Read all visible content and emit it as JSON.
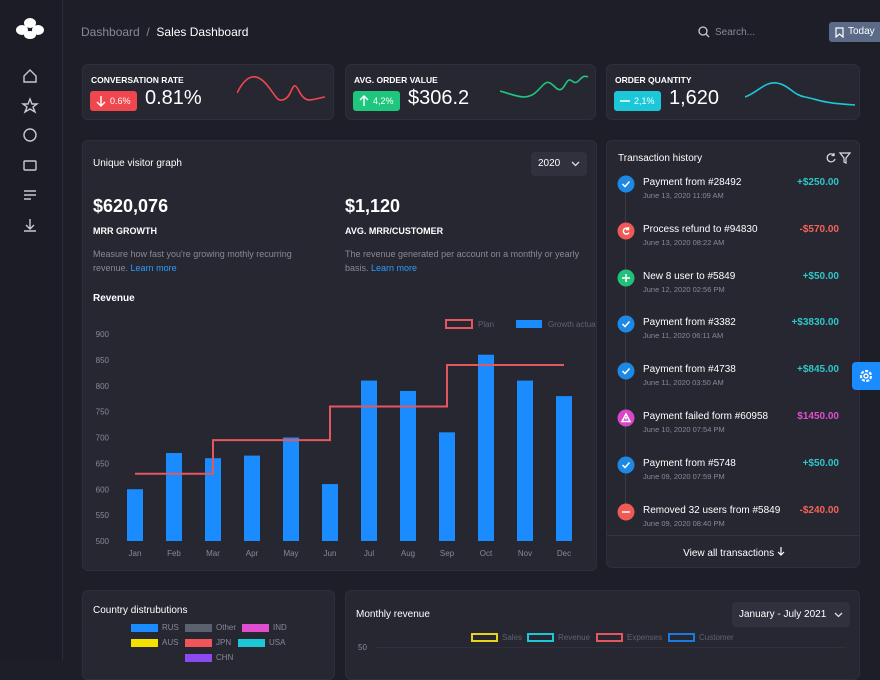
{
  "header": {
    "breadcrumb": [
      "Dashboard",
      "Sales Dashboard"
    ],
    "search": "Search...",
    "button": "Today"
  },
  "kpis": [
    {
      "title": "CONVERSATION RATE",
      "change": "0.6%",
      "value": "0.81%",
      "icon": "down",
      "color": "#f0474f"
    },
    {
      "title": "AVG. ORDER VALUE",
      "change": "4,2%",
      "value": "$306.2",
      "icon": "up",
      "color": "#1fc77e"
    },
    {
      "title": "ORDER QUANTITY",
      "change": "2,1%",
      "value": "1,620",
      "icon": "flat",
      "color": "#1cc8d8"
    }
  ],
  "visitor": {
    "title": "Unique visitor graph",
    "select": "2020",
    "metrics": [
      {
        "value": "$620,076",
        "label": "MRR GROWTH",
        "description": "Measure how fast you're growing mothly recurring revenue.",
        "link": "Learn more"
      },
      {
        "value": "$1,120",
        "label": "AVG. MRR/CUSTOMER",
        "description": "The revenue generated per account on a monthly or yearly basis.",
        "link": "Learn more"
      }
    ]
  },
  "chart_data": {
    "type": "bar",
    "title": "Revenue",
    "categories": [
      "Jan",
      "Feb",
      "Mar",
      "Apr",
      "May",
      "Jun",
      "Jul",
      "Aug",
      "Sep",
      "Oct",
      "Nov",
      "Dec"
    ],
    "series": [
      {
        "name": "Plan",
        "type": "step",
        "color": "#e5575f",
        "values": [
          630,
          630,
          695,
          695,
          695,
          760,
          760,
          760,
          840,
          840,
          840,
          840
        ]
      },
      {
        "name": "Growth actual",
        "type": "bar",
        "color": "#1a8cff",
        "values": [
          600,
          670,
          660,
          665,
          700,
          610,
          810,
          790,
          710,
          860,
          810,
          780
        ]
      }
    ],
    "ylim": [
      500,
      900
    ],
    "yticks": [
      500,
      550,
      600,
      650,
      700,
      750,
      800,
      850,
      900
    ],
    "grid": false,
    "legend": "top-right"
  },
  "transactions": {
    "title": "Transaction history",
    "footer": "View all transactions",
    "items": [
      {
        "title": "Payment from #28492",
        "date": "June 13, 2020 11:09 AM",
        "amount": "+$250.00",
        "icon": "check",
        "icon_color": "#1e88e5",
        "color": "#2fc6c8"
      },
      {
        "title": "Process refund to #94830",
        "date": "June 13, 2020 08:22 AM",
        "amount": "-$570.00",
        "icon": "refund",
        "icon_color": "#ef5a55",
        "color": "#f2645a"
      },
      {
        "title": "New 8 user to #5849",
        "date": "June 12, 2020 02:56 PM",
        "amount": "+$50.00",
        "icon": "plus",
        "icon_color": "#22c17a",
        "color": "#2fc6c8"
      },
      {
        "title": "Payment from #3382",
        "date": "June 11, 2020 06:11 AM",
        "amount": "+$3830.00",
        "icon": "check",
        "icon_color": "#1e88e5",
        "color": "#2fc6c8"
      },
      {
        "title": "Payment from #4738",
        "date": "June 11, 2020 03:50 AM",
        "amount": "+$845.00",
        "icon": "check",
        "icon_color": "#1e88e5",
        "color": "#2fc6c8"
      },
      {
        "title": "Payment failed form #60958",
        "date": "June 10, 2020 07:54 PM",
        "amount": "$1450.00",
        "icon": "warning",
        "icon_color": "#d946c8",
        "color": "#e04ed0"
      },
      {
        "title": "Payment from #5748",
        "date": "June 09, 2020 07:59 PM",
        "amount": "+$50.00",
        "icon": "check",
        "icon_color": "#1e88e5",
        "color": "#2fc6c8"
      },
      {
        "title": "Removed 32 users from #5849",
        "date": "June 09, 2020 08:40 PM",
        "amount": "-$240.00",
        "icon": "minus",
        "icon_color": "#ef5a55",
        "color": "#f2645a"
      }
    ]
  },
  "countries": {
    "title": "Country distrubutions",
    "legend": [
      {
        "name": "RUS",
        "color": "#1a8cff"
      },
      {
        "name": "Other",
        "color": "#5c6170"
      },
      {
        "name": "IND",
        "color": "#e04ed0"
      },
      {
        "name": "AUS",
        "color": "#f5e100"
      },
      {
        "name": "JPN",
        "color": "#f0555a"
      },
      {
        "name": "USA",
        "color": "#1cc8d8"
      },
      {
        "name": "CHN",
        "color": "#8a4af0"
      }
    ]
  },
  "monthly": {
    "title": "Monthly revenue",
    "select": "January - July 2021",
    "legend": [
      {
        "name": "Sales",
        "color": "#e8d21c"
      },
      {
        "name": "Revenue",
        "color": "#1cc8d8"
      },
      {
        "name": "Expenses",
        "color": "#e5575f"
      },
      {
        "name": "Customer",
        "color": "#1a7ae0"
      }
    ],
    "ytick": "50"
  }
}
